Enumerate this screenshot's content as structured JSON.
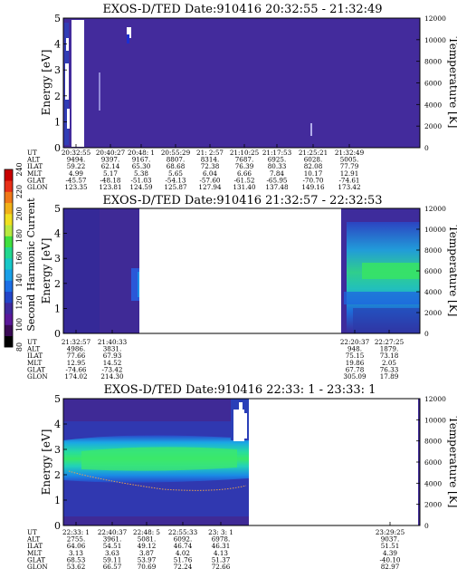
{
  "colorbar": {
    "label": "Second Harmonic Current",
    "ticks": [
      "80",
      "100",
      "120",
      "140",
      "160",
      "180",
      "200",
      "220",
      "240"
    ],
    "colors": [
      "#000000",
      "#3a0a55",
      "#5a189a",
      "#3f2a9e",
      "#2345c8",
      "#1c6fe6",
      "#1aa0e8",
      "#18c8c8",
      "#22d890",
      "#40e040",
      "#b8e840",
      "#f0e020",
      "#f0b018",
      "#f07818",
      "#e83018",
      "#c80000"
    ]
  },
  "chart_data": [
    {
      "type": "heatmap",
      "title": "EXOS-D/TED   Date:910416  20:32:55 - 21:32:49",
      "ylabel": "Energy [eV]",
      "y2label": "Temperature [K]",
      "ylim": [
        0,
        5
      ],
      "y2lim": [
        0,
        12000
      ],
      "yticks": [
        "0",
        "1",
        "2",
        "3",
        "4",
        "5"
      ],
      "y2ticks": [
        "0",
        "2000",
        "4000",
        "6000",
        "8000",
        "10000",
        "12000"
      ],
      "row_labels": [
        "UT",
        "ALT",
        "ILAT",
        "MLT",
        "GLAT",
        "GLON"
      ],
      "columns": [
        [
          "20:32:55",
          "9494.",
          "59.22",
          "4.99",
          "-45.57",
          "123.35"
        ],
        [
          "20:40:27",
          "9397.",
          "62.14",
          "5.17",
          "-48.18",
          "123.81"
        ],
        [
          "20:48: 1",
          "9167.",
          "65.30",
          "5.38",
          "-51.03",
          "124.59"
        ],
        [
          "20:55:29",
          "8807.",
          "68.68",
          "5.65",
          "-54.13",
          "125.87"
        ],
        [
          "21: 2:57",
          "8314.",
          "72.38",
          "6.04",
          "-57.60",
          "127.94"
        ],
        [
          "21:10:25",
          "7687.",
          "76.39",
          "6.66",
          "-61.52",
          "131.40"
        ],
        [
          "21:17:53",
          "6925.",
          "80.33",
          "7.84",
          "-65.95",
          "137.48"
        ],
        [
          "21:25:21",
          "6028.",
          "82.08",
          "10.17",
          "-70.70",
          "149.16"
        ],
        [
          "21:32:49",
          "5005.",
          "77.79",
          "12.91",
          "-74.61",
          "173.42"
        ]
      ]
    },
    {
      "type": "heatmap",
      "title": "EXOS-D/TED   Date:910416  21:32:57 - 22:32:53",
      "ylabel": "Energy [eV]",
      "y2label": "Temperature [K]",
      "ylim": [
        0,
        5
      ],
      "y2lim": [
        0,
        12000
      ],
      "yticks": [
        "0",
        "1",
        "2",
        "3",
        "4",
        "5"
      ],
      "y2ticks": [
        "0",
        "2000",
        "4000",
        "6000",
        "8000",
        "10000",
        "12000"
      ],
      "row_labels": [
        "UT",
        "ALT",
        "ILAT",
        "MLT",
        "GLAT",
        "GLON"
      ],
      "columns": [
        [
          "21:32:57",
          "4986.",
          "77.66",
          "12.95",
          "-74.66",
          "174.02"
        ],
        [
          "21:40:33",
          "3831.",
          "67.93",
          "14.52",
          "-73.42",
          "214.30"
        ],
        [
          "22:20:37",
          "948.",
          "75.15",
          "19.86",
          "67.78",
          "305.09"
        ],
        [
          "22:27:25",
          "1879.",
          "73.18",
          "2.05",
          "76.33",
          "17.89"
        ]
      ]
    },
    {
      "type": "heatmap",
      "title": "EXOS-D/TED   Date:910416  22:33: 1 - 23:33: 1",
      "ylabel": "Energy [eV]",
      "y2label": "Temperature [K]",
      "ylim": [
        0,
        5
      ],
      "y2lim": [
        0,
        12000
      ],
      "yticks": [
        "0",
        "1",
        "2",
        "3",
        "4",
        "5"
      ],
      "y2ticks": [
        "0",
        "2000",
        "4000",
        "6000",
        "8000",
        "10000",
        "12000"
      ],
      "row_labels": [
        "UT",
        "ALT",
        "ILAT",
        "MLT",
        "GLAT",
        "GLON"
      ],
      "columns": [
        [
          "22:33: 1",
          "2755.",
          "64.06",
          "3.13",
          "68.53",
          "53.62"
        ],
        [
          "22:40:37",
          "3961.",
          "54.51",
          "3.63",
          "59.11",
          "66.57"
        ],
        [
          "22:48: 5",
          "5081.",
          "49.12",
          "3.87",
          "53.97",
          "70.69"
        ],
        [
          "22:55:33",
          "6092.",
          "46.74",
          "4.02",
          "51.76",
          "72.24"
        ],
        [
          "23: 3: 1",
          "6978.",
          "46.31",
          "4.13",
          "51.37",
          "72.66"
        ],
        [
          "23:29:25",
          "9037.",
          "51.51",
          "4.39",
          "-40.10",
          "82.97"
        ]
      ]
    }
  ]
}
